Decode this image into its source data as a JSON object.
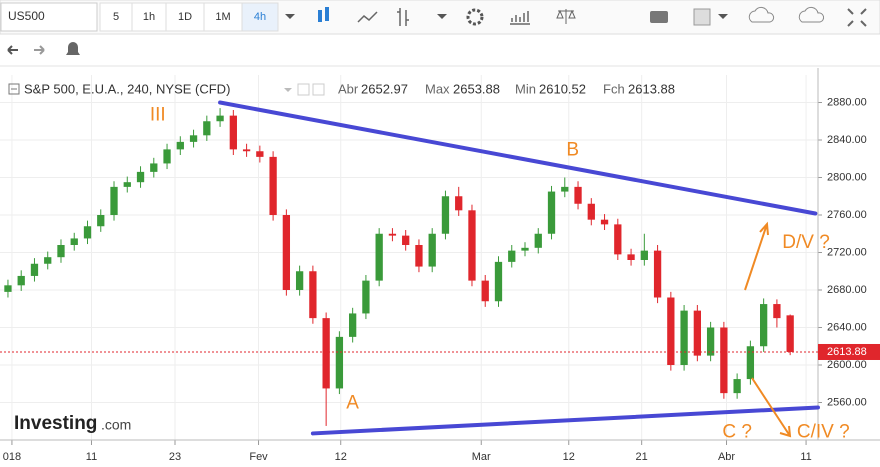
{
  "toolbar": {
    "symbol": "US500",
    "intervals": [
      "5",
      "1h",
      "1D",
      "1M",
      "4h"
    ]
  },
  "logo": {
    "name": "Investing",
    "suffix": ".com"
  },
  "chart_data": {
    "type": "candlestick",
    "title": "S&P 500, E.U.A., 240, NYSE (CFD)",
    "ohlc_labels": {
      "open": "Abr",
      "high": "Max",
      "low": "Min",
      "close": "Fch"
    },
    "up_color": "#3a9a3a",
    "down_color": "#e0262c",
    "open": [
      2678,
      2685,
      2695,
      2708,
      2715,
      2728,
      2735,
      2748,
      2760,
      2790,
      2795,
      2806,
      2815,
      2830,
      2838,
      2845,
      2860,
      2866,
      2830,
      2828,
      2822,
      2760,
      2680,
      2700,
      2650,
      2575,
      2630,
      2655,
      2690,
      2740,
      2738,
      2728,
      2705,
      2740,
      2780,
      2765,
      2690,
      2668,
      2710,
      2722,
      2725,
      2740,
      2785,
      2790,
      2772,
      2755,
      2750,
      2718,
      2712,
      2722,
      2672,
      2600,
      2658,
      2610,
      2640,
      2570,
      2585,
      2620,
      2665,
      2652.97
    ],
    "high": [
      2691,
      2701,
      2714,
      2721,
      2734,
      2741,
      2754,
      2766,
      2796,
      2801,
      2812,
      2821,
      2836,
      2844,
      2851,
      2866,
      2874,
      2872,
      2836,
      2834,
      2828,
      2766,
      2706,
      2706,
      2656,
      2636,
      2661,
      2696,
      2746,
      2746,
      2744,
      2734,
      2746,
      2786,
      2790,
      2771,
      2696,
      2716,
      2728,
      2731,
      2746,
      2791,
      2800,
      2796,
      2778,
      2761,
      2756,
      2724,
      2740,
      2728,
      2678,
      2664,
      2664,
      2646,
      2646,
      2591,
      2626,
      2671,
      2670,
      2653.88
    ],
    "low": [
      2672,
      2679,
      2689,
      2702,
      2709,
      2722,
      2729,
      2742,
      2754,
      2784,
      2789,
      2800,
      2809,
      2824,
      2832,
      2839,
      2854,
      2824,
      2822,
      2816,
      2754,
      2674,
      2674,
      2644,
      2535,
      2569,
      2624,
      2649,
      2684,
      2732,
      2722,
      2699,
      2699,
      2734,
      2759,
      2684,
      2662,
      2662,
      2704,
      2716,
      2719,
      2734,
      2779,
      2766,
      2749,
      2744,
      2712,
      2706,
      2706,
      2666,
      2594,
      2594,
      2604,
      2604,
      2564,
      2564,
      2579,
      2614,
      2640,
      2610.52
    ],
    "close": [
      2685,
      2695,
      2708,
      2715,
      2728,
      2735,
      2748,
      2760,
      2790,
      2795,
      2806,
      2815,
      2830,
      2838,
      2845,
      2860,
      2866,
      2830,
      2828,
      2822,
      2760,
      2680,
      2700,
      2650,
      2575,
      2630,
      2655,
      2690,
      2740,
      2738,
      2728,
      2705,
      2740,
      2780,
      2765,
      2690,
      2668,
      2710,
      2722,
      2725,
      2740,
      2785,
      2790,
      2772,
      2755,
      2750,
      2718,
      2712,
      2722,
      2672,
      2600,
      2658,
      2610,
      2640,
      2570,
      2585,
      2620,
      2665,
      2650,
      2613.88
    ],
    "xlim": [
      -0.6,
      61.1
    ],
    "xticks": [
      {
        "value": 0.3,
        "label": "018"
      },
      {
        "value": 6.3,
        "label": "11"
      },
      {
        "value": 12.6,
        "label": "23"
      },
      {
        "value": 18.9,
        "label": "Fev"
      },
      {
        "value": 25.1,
        "label": "12"
      },
      {
        "value": 35.7,
        "label": "Mar"
      },
      {
        "value": 42.3,
        "label": "12"
      },
      {
        "value": 47.8,
        "label": "21"
      },
      {
        "value": 54.2,
        "label": "Abr"
      },
      {
        "value": 60.2,
        "label": "11"
      }
    ],
    "ylim": [
      2520,
      2888
    ],
    "yticks": [
      {
        "value": 2560,
        "label": "2560.00"
      },
      {
        "value": 2600,
        "label": "2600.00"
      },
      {
        "value": 2640,
        "label": "2640.00"
      },
      {
        "value": 2680,
        "label": "2680.00"
      },
      {
        "value": 2720,
        "label": "2720.00"
      },
      {
        "value": 2760,
        "label": "2760.00"
      },
      {
        "value": 2800,
        "label": "2800.00"
      },
      {
        "value": 2840,
        "label": "2840.00"
      },
      {
        "value": 2880,
        "label": "2880.00"
      }
    ],
    "grid": true,
    "trendlines": [
      {
        "x": [
          16,
          60.9
        ],
        "y": [
          2880,
          2761.6
        ],
        "color": "#4848d4"
      },
      {
        "x": [
          23,
          61.1
        ],
        "y": [
          2527,
          2554.7
        ],
        "color": "#4848d4"
      }
    ],
    "annotation_color": "#f08a24",
    "annotations": [
      {
        "text": "III",
        "x": 11.3,
        "y": 2866
      },
      {
        "text": "B",
        "x": 42.6,
        "y": 2829
      },
      {
        "text": "A",
        "x": 26,
        "y": 2559
      },
      {
        "text": "C ?",
        "x": 55,
        "y": 2528
      },
      {
        "text": "D/V ?",
        "x": 60.2,
        "y": 2730
      },
      {
        "text": "C/IV ?",
        "x": 61.5,
        "y": 2528
      }
    ]
  }
}
